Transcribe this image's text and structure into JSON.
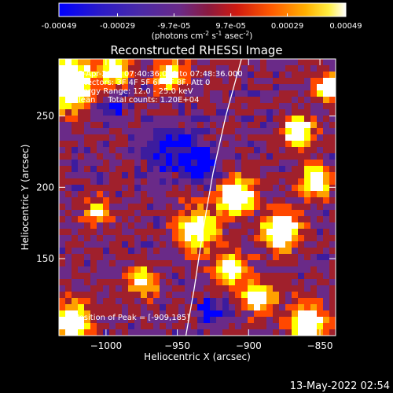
{
  "colorbar": {
    "ticks": [
      "-0.00049",
      "-0.00029",
      "-9.7e-05",
      "9.7e-05",
      "0.00029",
      "0.00049"
    ],
    "tick_values": [
      -0.00049,
      -0.00029,
      -9.7e-05,
      9.7e-05,
      0.00029,
      0.00049
    ],
    "range": [
      -0.00049,
      0.00049
    ],
    "units_prefix": "(photons cm",
    "units_sup1": "-2",
    "units_mid": " s",
    "units_sup2": "-1",
    "units_asec": " asec",
    "units_sup3": "-2",
    "units_suffix": ")"
  },
  "chart_data": {
    "type": "heatmap",
    "title": "Reconstructed RHESSI Image",
    "xlabel": "Heliocentric X (arcsec)",
    "ylabel": "Heliocentric Y (arcsec)",
    "xlim": [
      -1033,
      -839
    ],
    "ylim": [
      96,
      290
    ],
    "xticks": [
      -1000,
      -950,
      -900,
      -850
    ],
    "xtick_labels": [
      "−1000",
      "−950",
      "−900",
      "−850"
    ],
    "yticks": [
      150,
      200,
      250
    ],
    "ytick_labels": [
      "150",
      "200",
      "250"
    ],
    "annotations": {
      "line1": "25-Apr-2013 07:40:36.000 to 07:48:36.000",
      "line2": "Detectors: 3F 4F 5F 6F 7F 8F, Att 0",
      "line3": "Energy Range: 12.0 - 25.0 keV",
      "line4": "Clean     Total counts: 1.20E+04",
      "peak": "Position of Peak = [-909,185]"
    },
    "peak_position": [
      -909,
      185
    ],
    "limb_curve": [
      [
        -944,
        96
      ],
      [
        -938,
        130
      ],
      [
        -932,
        170
      ],
      [
        -925,
        210
      ],
      [
        -916,
        250
      ],
      [
        -905,
        290
      ]
    ],
    "grid": false
  },
  "footer": {
    "timestamp": "13-May-2022 02:54"
  },
  "colors": {
    "background": "#000000",
    "foreground": "#ffffff",
    "colormap": [
      "#0000ff",
      "#3c1c9e",
      "#6a2a88",
      "#a0202c",
      "#ff4800",
      "#ffa000",
      "#ffff00",
      "#ffffff"
    ]
  }
}
